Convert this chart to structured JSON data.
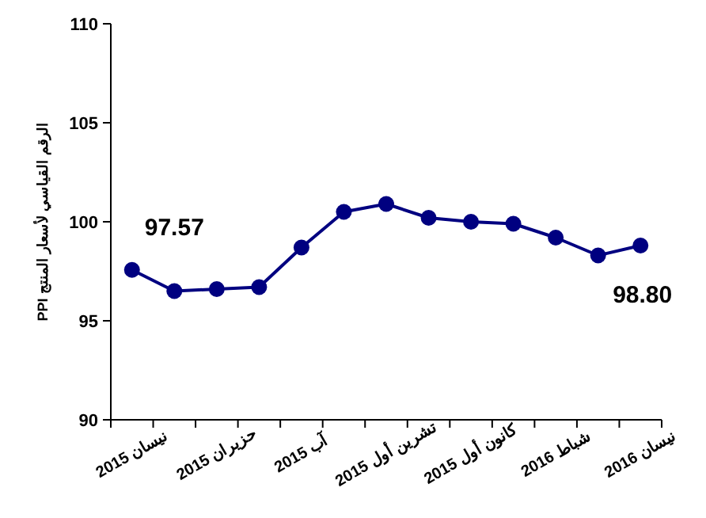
{
  "chart_data": {
    "type": "line",
    "ylabel": "الرقم القياسي لأسعار المنتج PPI",
    "categories": [
      "نيسان 2015",
      null,
      "حزيران 2015",
      null,
      "آب 2015",
      null,
      "تشرين أول 2015",
      null,
      "كانون أول 2015",
      null,
      "شباط 2016",
      null,
      "نيسان 2016"
    ],
    "series": [
      {
        "color": "#000080",
        "values": [
          97.57,
          96.5,
          96.6,
          96.7,
          98.7,
          100.5,
          100.9,
          100.2,
          100.0,
          99.9,
          99.2,
          98.3,
          98.8
        ]
      }
    ],
    "ylim": [
      90,
      110
    ],
    "yticks": [
      90,
      95,
      100,
      105,
      110
    ],
    "marker": "circle",
    "line_style": "solid",
    "grid": false,
    "annotations": [
      {
        "text": "97.57",
        "x": "نيسان 2015",
        "y": 97.57
      },
      {
        "text": "98.80",
        "x": "نيسان 2016",
        "y": 98.8
      }
    ]
  }
}
